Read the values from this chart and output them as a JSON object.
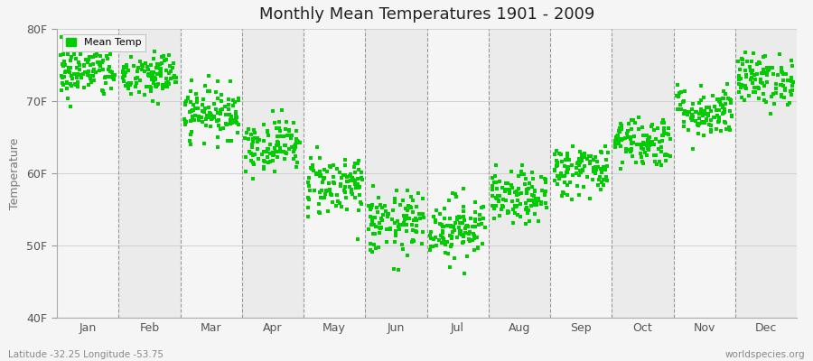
{
  "title": "Monthly Mean Temperatures 1901 - 2009",
  "ylabel": "Temperature",
  "xlabel_labels": [
    "Jan",
    "Feb",
    "Mar",
    "Apr",
    "May",
    "Jun",
    "Jul",
    "Aug",
    "Sep",
    "Oct",
    "Nov",
    "Dec"
  ],
  "ytick_labels": [
    "40F",
    "50F",
    "60F",
    "70F",
    "80F"
  ],
  "ytick_values": [
    40,
    50,
    60,
    70,
    80
  ],
  "ylim": [
    40,
    80
  ],
  "legend_label": "Mean Temp",
  "marker_color": "#00cc00",
  "marker_size": 5,
  "background_color": "#f5f5f5",
  "plot_bg_even": "#ebebeb",
  "plot_bg_odd": "#f5f5f5",
  "footnote_left": "Latitude -32.25 Longitude -53.75",
  "footnote_right": "worldspecies.org",
  "monthly_means": [
    74.0,
    73.5,
    68.5,
    64.0,
    58.5,
    53.0,
    52.5,
    56.5,
    60.5,
    64.5,
    68.5,
    73.0
  ],
  "monthly_stds": [
    1.8,
    1.8,
    1.8,
    1.8,
    2.2,
    2.2,
    2.2,
    1.8,
    1.8,
    1.8,
    1.8,
    1.8
  ],
  "n_years": 109,
  "seed": 42
}
